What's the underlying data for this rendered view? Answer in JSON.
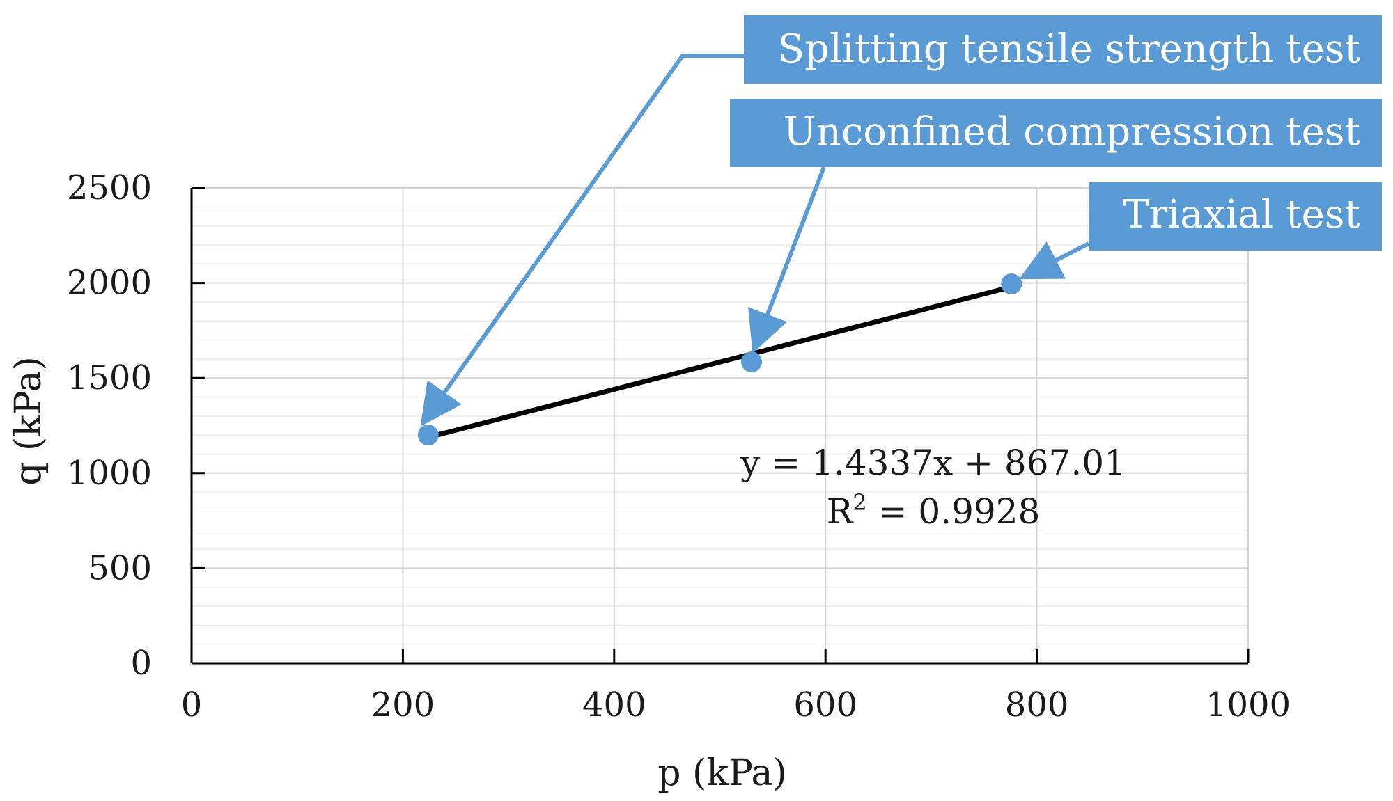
{
  "chart_data": {
    "type": "scatter",
    "xlabel": "p (kPa)",
    "ylabel": "q (kPa)",
    "xlim": [
      0,
      1000
    ],
    "ylim": [
      0,
      2500
    ],
    "x_ticks": [
      0,
      200,
      400,
      600,
      800,
      1000
    ],
    "y_ticks": [
      0,
      500,
      1000,
      1500,
      2000,
      2500
    ],
    "x_tick_labels": [
      "0",
      "200",
      "400",
      "600",
      "800",
      "1000"
    ],
    "y_tick_labels": [
      "0",
      "500",
      "1000",
      "1500",
      "2000",
      "2500"
    ],
    "grid": true,
    "series": [
      {
        "points": [
          {
            "x": 224,
            "y": 1200
          },
          {
            "x": 530,
            "y": 1585
          },
          {
            "x": 776,
            "y": 1995
          }
        ],
        "color": "#5b9bd5"
      }
    ],
    "trendline": {
      "type": "linear",
      "x_range": [
        224,
        776
      ],
      "slope": 1.4337,
      "intercept": 867.01,
      "color": "#000000",
      "equation": "y = 1.4337x + 867.01",
      "r2_prefix": "R",
      "r2_sup": "2",
      "r2_suffix": " = 0.9928"
    },
    "annotations": [
      {
        "text": "Splitting tensile strength test",
        "target_point": 0
      },
      {
        "text": "Unconfined compression test",
        "target_point": 1
      },
      {
        "text": "Triaxial test",
        "target_point": 2
      }
    ],
    "callout_color": "#5b9bd5"
  }
}
